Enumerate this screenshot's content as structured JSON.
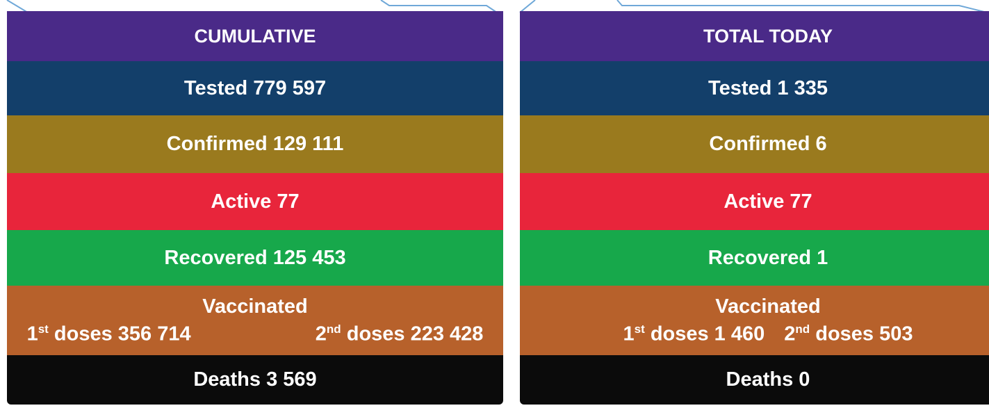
{
  "panels": [
    {
      "title": "CUMULATIVE",
      "rows": [
        "Tested 779 597",
        "Confirmed 129 111",
        "Active 77",
        "Recovered 125 453"
      ],
      "vaccinated": {
        "label": "Vaccinated",
        "doses": [
          {
            "number": "1",
            "suffix": "st",
            "text": "doses 356 714"
          },
          {
            "number": "2",
            "suffix": "nd",
            "text": "doses 223 428"
          }
        ]
      },
      "deaths": "Deaths 3 569"
    },
    {
      "title": "TOTAL TODAY",
      "rows": [
        "Tested 1 335",
        "Confirmed 6",
        "Active 77",
        "Recovered 1"
      ],
      "vaccinated": {
        "label": "Vaccinated",
        "doses": [
          {
            "number": "1",
            "suffix": "st",
            "text": "doses 1 460"
          },
          {
            "number": "2",
            "suffix": "nd",
            "text": "doses 503"
          }
        ]
      },
      "deaths": "Deaths 0"
    }
  ]
}
